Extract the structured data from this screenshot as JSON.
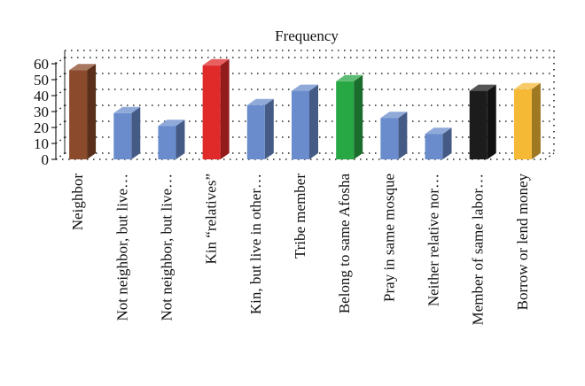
{
  "chart_data": {
    "type": "bar",
    "title": "Frequency",
    "xlabel": "",
    "ylabel": "",
    "ylim": [
      0,
      60
    ],
    "yticks": [
      0,
      10,
      20,
      30,
      40,
      50,
      60
    ],
    "grid": true,
    "style": "3d",
    "categories": [
      "Neighbor",
      "Not neighbor, but live…",
      "Not neighbor, but live…",
      "Kin “relatives”",
      "Kin, but live in other…",
      "Tribe member",
      "Belong to same Afosha",
      "Pray in same mosque",
      "Neither relative nor…",
      "Member of same labor…",
      "Borrow or lend money"
    ],
    "values": [
      56,
      29,
      21,
      59,
      34,
      43,
      49,
      26,
      16,
      43,
      44
    ],
    "colors": [
      "#8b4a2b",
      "#6a8ccc",
      "#6a8ccc",
      "#e02a2a",
      "#6a8ccc",
      "#6a8ccc",
      "#28a745",
      "#6a8ccc",
      "#6a8ccc",
      "#1c1c1c",
      "#f5b935"
    ]
  }
}
